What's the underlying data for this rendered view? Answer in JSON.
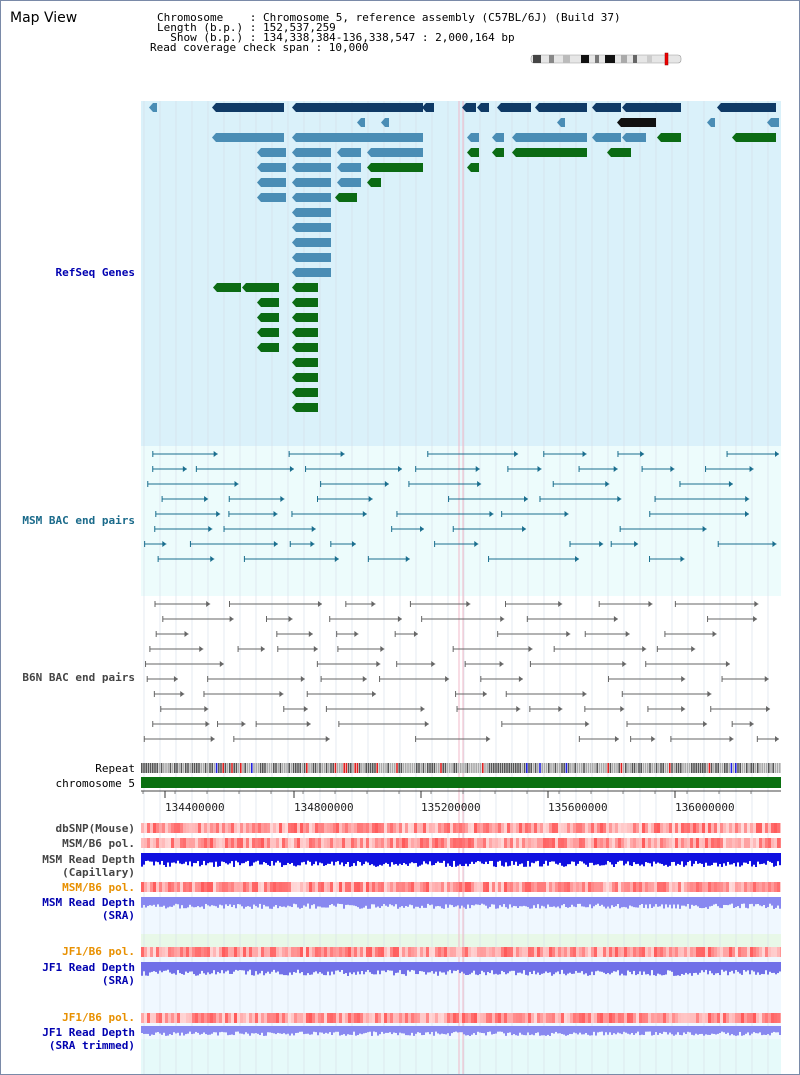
{
  "header": {
    "map_view_label": "Map View",
    "chromosome_line": "Chromosome    : Chromosome 5, reference assembly (C57BL/6J) (Build 37)",
    "length_line": "Length (b.p.) : 152,537,259",
    "show_line": "  Show (b.p.) : 134,338,384-136,338,547 : 2,000,164 bp",
    "coverage_line": "Read coverage check span : 10,000"
  },
  "tracks": {
    "refseq": "RefSeq Genes",
    "msm_bac": "MSM BAC end pairs",
    "b6n_bac": "B6N BAC end pairs",
    "repeat": "Repeat",
    "chromosome": "chromosome 5",
    "dbsnp": "dbSNP(Mouse)",
    "msm_b6_pol_1": "MSM/B6 pol.",
    "msm_read_depth_cap_1": "MSM Read Depth",
    "msm_read_depth_cap_2": "(Capillary)",
    "msm_b6_pol_2": "MSM/B6 pol.",
    "msm_read_depth_sra_1": "MSM Read Depth",
    "msm_read_depth_sra_2": "(SRA)",
    "jf1_b6_pol_1": "JF1/B6 pol.",
    "jf1_read_depth_sra_1": "JF1 Read Depth",
    "jf1_read_depth_sra_2": "(SRA)",
    "jf1_b6_pol_2": "JF1/B6 pol.",
    "jf1_read_depth_trim_1": "JF1 Read Depth",
    "jf1_read_depth_trim_2": "(SRA trimmed)"
  },
  "axis": {
    "ticks": [
      "134400000",
      "134800000",
      "135200000",
      "135600000",
      "136000000"
    ]
  },
  "colors": {
    "refseq_bg": "#daf1fa",
    "bac_bg": "#edfcfc",
    "gene_dark": "#0f3a66",
    "gene_mid": "#4a8db5",
    "gene_green": "#0b6b14",
    "label_blue": "#0000b0",
    "label_teal": "#1a6a8a",
    "label_gray": "#444444",
    "label_orange": "#e89000",
    "chrom_green": "#0a7010"
  }
}
